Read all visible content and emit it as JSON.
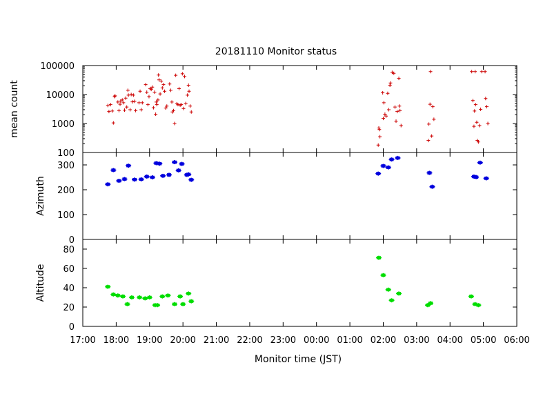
{
  "chart_data": {
    "type": "scatter",
    "title": "20181110 Monitor status",
    "xlabel": "Monitor time (JST)",
    "x_range": [
      "17:00",
      "06:00"
    ],
    "x_ticks": [
      "17:00",
      "18:00",
      "19:00",
      "20:00",
      "21:00",
      "22:00",
      "23:00",
      "00:00",
      "01:00",
      "02:00",
      "03:00",
      "04:00",
      "05:00",
      "06:00"
    ],
    "grid": false,
    "panels": [
      {
        "id": "mean-count",
        "ylabel": "mean count",
        "scale": "log",
        "ylim": [
          100,
          100000
        ],
        "y_ticks": [
          "100",
          "1000",
          "10000",
          "100000"
        ],
        "color": "#cc0000",
        "marker": "plus",
        "points": [
          [
            "17:45",
            4200
          ],
          [
            "17:47",
            2600
          ],
          [
            "17:50",
            4500
          ],
          [
            "17:53",
            2700
          ],
          [
            "17:55",
            1050
          ],
          [
            "17:57",
            8500
          ],
          [
            "17:58",
            9000
          ],
          [
            "18:03",
            5500
          ],
          [
            "18:05",
            2800
          ],
          [
            "18:07",
            4600
          ],
          [
            "18:08",
            6000
          ],
          [
            "18:11",
            6500
          ],
          [
            "18:13",
            5200
          ],
          [
            "18:15",
            2900
          ],
          [
            "18:17",
            7500
          ],
          [
            "18:19",
            3700
          ],
          [
            "18:21",
            14000
          ],
          [
            "18:22",
            9500
          ],
          [
            "18:25",
            3000
          ],
          [
            "18:27",
            10000
          ],
          [
            "18:29",
            5600
          ],
          [
            "18:31",
            9500
          ],
          [
            "18:33",
            5800
          ],
          [
            "18:35",
            2800
          ],
          [
            "18:41",
            5200
          ],
          [
            "18:43",
            13000
          ],
          [
            "18:45",
            3000
          ],
          [
            "18:47",
            5200
          ],
          [
            "18:53",
            22000
          ],
          [
            "18:55",
            12000
          ],
          [
            "18:57",
            4500
          ],
          [
            "18:59",
            8500
          ],
          [
            "19:01",
            16000
          ],
          [
            "19:03",
            15000
          ],
          [
            "19:05",
            18000
          ],
          [
            "19:07",
            3500
          ],
          [
            "19:09",
            12000
          ],
          [
            "19:11",
            2100
          ],
          [
            "19:12",
            5500
          ],
          [
            "19:13",
            4500
          ],
          [
            "19:15",
            6500
          ],
          [
            "19:16",
            47000
          ],
          [
            "19:17",
            32000
          ],
          [
            "19:19",
            10500
          ],
          [
            "19:21",
            29000
          ],
          [
            "19:23",
            17000
          ],
          [
            "19:25",
            22000
          ],
          [
            "19:27",
            13000
          ],
          [
            "19:29",
            3400
          ],
          [
            "19:31",
            4000
          ],
          [
            "19:36",
            23000
          ],
          [
            "19:38",
            14000
          ],
          [
            "19:40",
            5500
          ],
          [
            "19:41",
            2500
          ],
          [
            "19:43",
            2800
          ],
          [
            "19:45",
            1000
          ],
          [
            "19:47",
            46000
          ],
          [
            "19:49",
            4800
          ],
          [
            "19:51",
            4500
          ],
          [
            "19:53",
            16000
          ],
          [
            "19:55",
            4300
          ],
          [
            "19:57",
            4500
          ],
          [
            "19:59",
            52000
          ],
          [
            "20:01",
            3300
          ],
          [
            "20:03",
            42000
          ],
          [
            "20:05",
            4900
          ],
          [
            "20:08",
            9500
          ],
          [
            "20:10",
            21000
          ],
          [
            "20:11",
            13000
          ],
          [
            "20:13",
            4000
          ],
          [
            "20:15",
            2500
          ],
          [
            "01:51",
            180
          ],
          [
            "01:52",
            700
          ],
          [
            "01:53",
            620
          ],
          [
            "01:54",
            350
          ],
          [
            "01:59",
            11500
          ],
          [
            "02:00",
            1500
          ],
          [
            "02:01",
            5200
          ],
          [
            "02:03",
            2100
          ],
          [
            "02:05",
            1800
          ],
          [
            "02:08",
            11000
          ],
          [
            "02:10",
            3000
          ],
          [
            "02:12",
            21000
          ],
          [
            "02:13",
            25000
          ],
          [
            "02:16",
            58000
          ],
          [
            "02:19",
            54000
          ],
          [
            "02:21",
            3700
          ],
          [
            "02:23",
            1200
          ],
          [
            "02:25",
            2600
          ],
          [
            "02:28",
            36000
          ],
          [
            "02:29",
            4000
          ],
          [
            "02:30",
            2800
          ],
          [
            "02:32",
            850
          ],
          [
            "03:21",
            260
          ],
          [
            "03:22",
            950
          ],
          [
            "03:24",
            4600
          ],
          [
            "03:25",
            62000
          ],
          [
            "03:27",
            370
          ],
          [
            "03:29",
            3800
          ],
          [
            "03:31",
            1400
          ],
          [
            "04:39",
            62000
          ],
          [
            "04:41",
            6200
          ],
          [
            "04:43",
            800
          ],
          [
            "04:44",
            2700
          ],
          [
            "04:45",
            62000
          ],
          [
            "04:46",
            4500
          ],
          [
            "04:48",
            1100
          ],
          [
            "04:49",
            260
          ],
          [
            "04:51",
            230
          ],
          [
            "04:53",
            850
          ],
          [
            "04:55",
            3100
          ],
          [
            "04:57",
            62000
          ],
          [
            "05:03",
            62000
          ],
          [
            "05:04",
            7300
          ],
          [
            "05:06",
            3800
          ],
          [
            "05:08",
            1000
          ]
        ]
      },
      {
        "id": "azimuth",
        "ylabel": "Azimuth",
        "scale": "linear",
        "ylim": [
          0,
          350
        ],
        "y_ticks": [
          "0",
          "100",
          "200",
          "300"
        ],
        "color": "#0000dd",
        "marker": "cluster",
        "points": [
          [
            "17:45",
            222
          ],
          [
            "17:55",
            279
          ],
          [
            "18:05",
            236
          ],
          [
            "18:15",
            243
          ],
          [
            "18:22",
            297
          ],
          [
            "18:33",
            241
          ],
          [
            "18:45",
            242
          ],
          [
            "18:55",
            253
          ],
          [
            "19:05",
            250
          ],
          [
            "19:12",
            307
          ],
          [
            "19:18",
            305
          ],
          [
            "19:24",
            256
          ],
          [
            "19:35",
            260
          ],
          [
            "19:45",
            311
          ],
          [
            "19:52",
            278
          ],
          [
            "19:58",
            304
          ],
          [
            "20:07",
            260
          ],
          [
            "20:10",
            262
          ],
          [
            "20:15",
            240
          ],
          [
            "01:51",
            265
          ],
          [
            "02:00",
            296
          ],
          [
            "02:09",
            290
          ],
          [
            "02:15",
            322
          ],
          [
            "02:26",
            328
          ],
          [
            "03:23",
            268
          ],
          [
            "03:28",
            212
          ],
          [
            "04:43",
            253
          ],
          [
            "04:47",
            251
          ],
          [
            "04:54",
            309
          ],
          [
            "05:05",
            246
          ]
        ]
      },
      {
        "id": "altitude",
        "ylabel": "Altitude",
        "scale": "linear",
        "ylim": [
          0,
          90
        ],
        "y_ticks": [
          "0",
          "20",
          "40",
          "60",
          "80"
        ],
        "color": "#00dd00",
        "marker": "cluster",
        "points": [
          [
            "17:45",
            41
          ],
          [
            "17:55",
            33
          ],
          [
            "18:03",
            32
          ],
          [
            "18:12",
            31
          ],
          [
            "18:20",
            23
          ],
          [
            "18:28",
            30
          ],
          [
            "18:42",
            30
          ],
          [
            "18:52",
            29
          ],
          [
            "19:00",
            30
          ],
          [
            "19:10",
            22
          ],
          [
            "19:14",
            22
          ],
          [
            "19:23",
            31
          ],
          [
            "19:33",
            32
          ],
          [
            "19:45",
            23
          ],
          [
            "19:55",
            31
          ],
          [
            "20:00",
            23
          ],
          [
            "20:10",
            34
          ],
          [
            "20:15",
            26
          ],
          [
            "01:52",
            71
          ],
          [
            "02:00",
            53
          ],
          [
            "02:09",
            38
          ],
          [
            "02:15",
            27
          ],
          [
            "02:28",
            34
          ],
          [
            "03:20",
            22
          ],
          [
            "03:25",
            24
          ],
          [
            "04:38",
            31
          ],
          [
            "04:45",
            23
          ],
          [
            "04:51",
            22
          ]
        ]
      }
    ]
  }
}
